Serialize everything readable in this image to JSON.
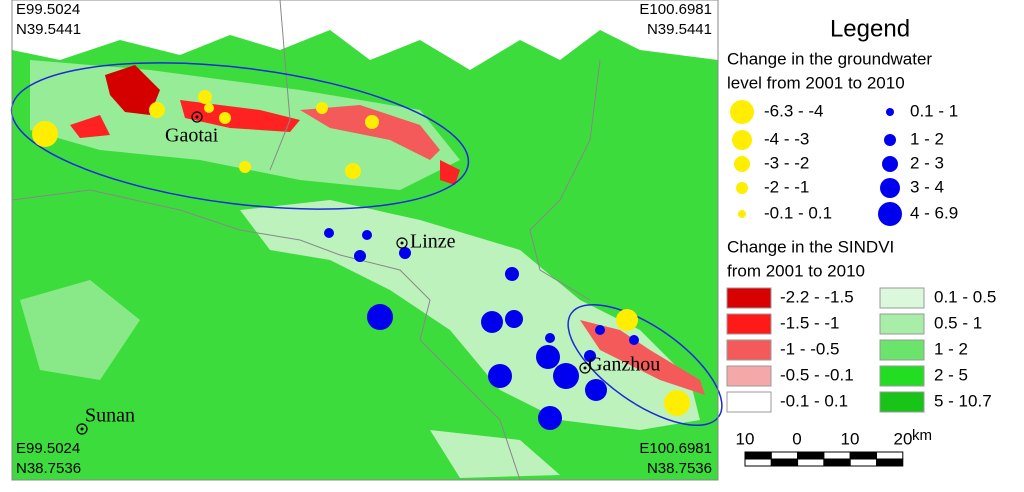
{
  "map": {
    "corners": {
      "top_left": [
        "E99.5024",
        "N39.5441"
      ],
      "top_right": [
        "E100.6981",
        "N39.5441"
      ],
      "bottom_left": [
        "E99.5024",
        "N38.7536"
      ],
      "bottom_right": [
        "E100.6981",
        "N38.7536"
      ]
    },
    "places": [
      "Gaotai",
      "Linze",
      "Ganzhou",
      "Sunan"
    ]
  },
  "legend": {
    "title": "Legend",
    "groundwater": {
      "title": [
        "Change in the groundwater",
        "level from 2001 to 2010"
      ],
      "decrease": {
        "color": "#ffee00",
        "labels": [
          "-6.3 - -4",
          "-4 - -3",
          "-3 - -2",
          "-2 - -1",
          "-0.1 - 0.1"
        ]
      },
      "increase": {
        "color": "#0000ee",
        "labels": [
          "0.1 - 1",
          "1 - 2",
          "2 - 3",
          "3 - 4",
          "4 - 6.9"
        ]
      }
    },
    "sindvi": {
      "title": [
        "Change in the SINDVI",
        "from 2001 to 2010"
      ],
      "negative": {
        "colors": [
          "#d80000",
          "#ff1a1a",
          "#f55a5a",
          "#f5a8a8",
          "#ffffff"
        ],
        "labels": [
          "-2.2 - -1.5",
          "-1.5 - -1",
          "-1 - -0.5",
          "-0.5 - -0.1",
          "-0.1 - 0.1"
        ]
      },
      "positive": {
        "colors": [
          "#dcf8dc",
          "#a8eea8",
          "#6ae46a",
          "#22dd22",
          "#19c419"
        ],
        "labels": [
          "0.1 - 0.5",
          "0.5 - 1",
          "1 - 2",
          "2 - 5",
          "5 - 10.7"
        ]
      }
    }
  },
  "scale_bar": {
    "labels": [
      "10",
      "0",
      "10",
      "20"
    ],
    "unit": "km"
  }
}
